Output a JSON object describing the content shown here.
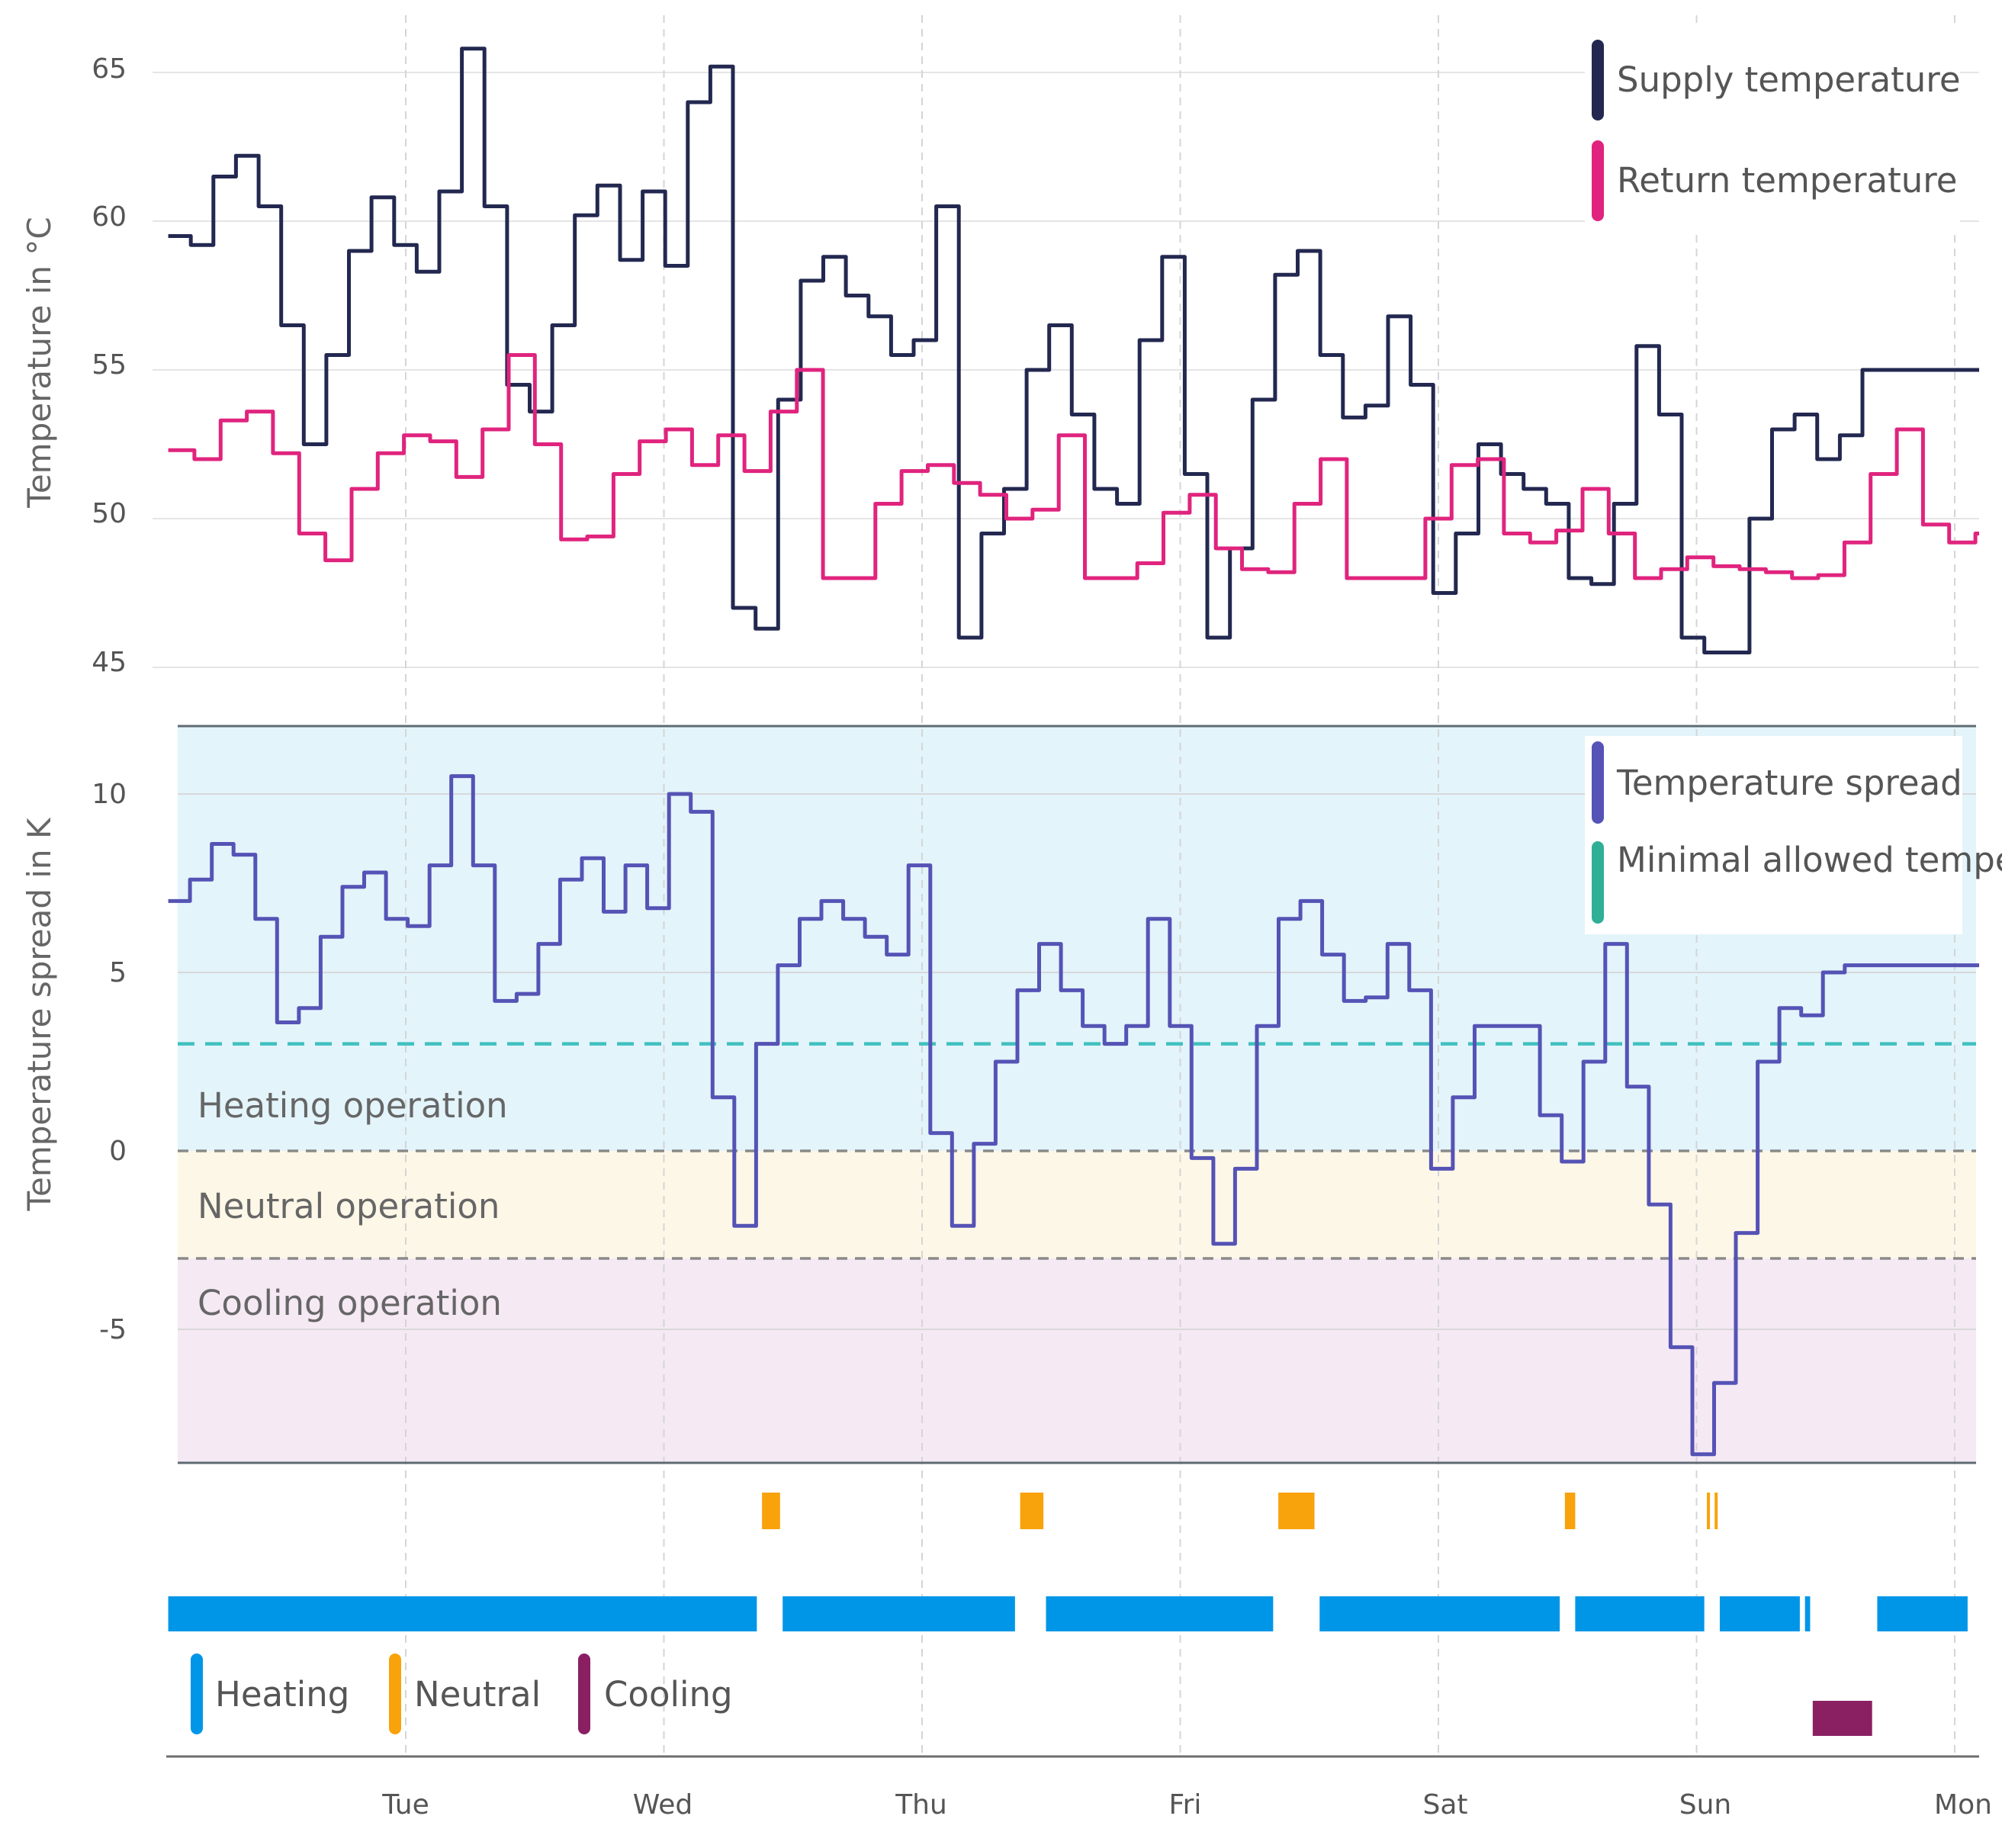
{
  "chart_data": {
    "type": "line",
    "x_categories": [
      "Tue",
      "Wed",
      "Thu",
      "Fri",
      "Sat",
      "Sun",
      "Mon"
    ],
    "top": {
      "ylabel": "Temperature in °C",
      "ylim": [
        45,
        66.5
      ],
      "y_ticks": [
        "45",
        "50",
        "55",
        "60",
        "65"
      ],
      "grid": true,
      "legend_position": "top-right",
      "series": [
        {
          "name": "Supply temperature",
          "color": "#232850",
          "x": [
            0,
            0.1,
            0.2,
            0.3,
            0.4,
            0.5,
            0.6,
            0.7,
            0.8,
            0.9,
            1,
            1.1,
            1.2,
            1.3,
            1.4,
            1.5,
            1.6,
            1.7,
            1.8,
            1.9,
            2,
            2.1,
            2.2,
            2.3,
            2.4,
            2.5,
            2.6,
            2.7,
            2.8,
            2.9,
            3,
            3.1,
            3.2,
            3.3,
            3.4,
            3.5,
            3.6,
            3.7,
            3.8,
            3.9,
            4,
            4.1,
            4.2,
            4.3,
            4.4,
            4.5,
            4.6,
            4.7,
            4.8,
            4.9,
            5,
            5.1,
            5.2,
            5.3,
            5.4,
            5.5,
            5.6,
            5.7,
            5.8,
            5.9,
            6,
            6.1,
            6.2,
            6.3,
            6.4,
            6.5,
            6.6,
            6.7,
            6.8,
            6.9,
            7,
            7.1,
            7.2,
            7.3,
            7.4,
            7.5,
            7.6,
            7.7,
            7.8,
            7.9,
            8
          ],
          "values": [
            59.5,
            59.2,
            61.5,
            62.2,
            60.5,
            56.5,
            52.5,
            55.5,
            59.0,
            60.8,
            59.2,
            58.3,
            61.0,
            65.8,
            60.5,
            54.5,
            53.6,
            56.5,
            60.2,
            61.2,
            58.7,
            61.0,
            58.5,
            64.0,
            65.2,
            47.0,
            46.3,
            54.0,
            58.0,
            58.8,
            57.5,
            56.8,
            55.5,
            56.0,
            60.5,
            46.0,
            49.5,
            51.0,
            55.0,
            56.5,
            53.5,
            51.0,
            50.5,
            56.0,
            58.8,
            51.5,
            46.0,
            49.0,
            54.0,
            58.2,
            59.0,
            55.5,
            53.4,
            53.8,
            56.8,
            54.5,
            47.5,
            49.5,
            52.5,
            51.5,
            51.0,
            50.5,
            48.0,
            47.8,
            50.5,
            55.8,
            53.5,
            46.0,
            45.5,
            45.5,
            50.0,
            53.0,
            53.5,
            52.0,
            52.8,
            55.0,
            55.0,
            55.0,
            55.0,
            55.0,
            55.0
          ],
          "last_x": 6.9
        },
        {
          "name": "Return temperature",
          "color": "#e0247e",
          "x": [
            0,
            0.1,
            0.2,
            0.3,
            0.4,
            0.5,
            0.6,
            0.7,
            0.8,
            0.9,
            1,
            1.1,
            1.2,
            1.3,
            1.4,
            1.5,
            1.6,
            1.7,
            1.8,
            1.9,
            2,
            2.1,
            2.2,
            2.3,
            2.4,
            2.5,
            2.6,
            2.7,
            2.8,
            2.9,
            3,
            3.1,
            3.2,
            3.3,
            3.4,
            3.5,
            3.6,
            3.7,
            3.8,
            3.9,
            4,
            4.1,
            4.2,
            4.3,
            4.4,
            4.5,
            4.6,
            4.7,
            4.8,
            4.9,
            5,
            5.1,
            5.2,
            5.3,
            5.4,
            5.5,
            5.6,
            5.7,
            5.8,
            5.9,
            6,
            6.1,
            6.2,
            6.3,
            6.4,
            6.5,
            6.6,
            6.7,
            6.8,
            6.9
          ],
          "values": [
            52.3,
            52.0,
            53.3,
            53.6,
            52.2,
            49.5,
            48.6,
            51.0,
            52.2,
            52.8,
            52.6,
            51.4,
            53.0,
            55.5,
            52.5,
            49.3,
            49.4,
            51.5,
            52.6,
            53.0,
            51.8,
            52.8,
            51.6,
            53.6,
            55.0,
            48.0,
            48.0,
            50.5,
            51.6,
            51.8,
            51.2,
            50.8,
            50.0,
            50.3,
            52.8,
            48.0,
            48.0,
            48.5,
            50.2,
            50.8,
            49.0,
            48.3,
            48.2,
            50.5,
            52.0,
            48.0,
            48.0,
            48.0,
            50.0,
            51.8,
            52.0,
            49.5,
            49.2,
            49.6,
            51.0,
            49.5,
            48.0,
            48.3,
            48.7,
            48.4,
            48.3,
            48.2,
            48.0,
            48.1,
            49.2,
            51.5,
            53.0,
            49.8,
            49.2,
            49.5
          ]
        }
      ]
    },
    "bottom": {
      "ylabel": "Temperature spread in K",
      "ylim": [
        -8.8,
        12
      ],
      "y_ticks": [
        "10",
        "5",
        "0",
        "-5"
      ],
      "grid": true,
      "legend_position": "top-right",
      "bands": [
        {
          "label": "Heating operation",
          "from": 0,
          "to": 12,
          "color": "#e3f4fb"
        },
        {
          "label": "Neutral operation",
          "from": -3,
          "to": 0,
          "color": "#fdf7e7"
        },
        {
          "label": "Cooling operation",
          "from": -8.8,
          "to": -3,
          "color": "#f5e9f4"
        }
      ],
      "band_boundaries": [
        0,
        -3
      ],
      "series": [
        {
          "name": "Temperature spread",
          "color": "#5553b5",
          "x": [
            0,
            0.1,
            0.2,
            0.3,
            0.4,
            0.5,
            0.6,
            0.7,
            0.8,
            0.9,
            1,
            1.1,
            1.2,
            1.3,
            1.4,
            1.5,
            1.6,
            1.7,
            1.8,
            1.9,
            2,
            2.1,
            2.2,
            2.3,
            2.4,
            2.5,
            2.55,
            2.6,
            2.7,
            2.8,
            2.9,
            3,
            3.1,
            3.2,
            3.3,
            3.4,
            3.5,
            3.55,
            3.6,
            3.7,
            3.8,
            3.9,
            4,
            4.1,
            4.2,
            4.3,
            4.4,
            4.5,
            4.55,
            4.6,
            4.7,
            4.8,
            4.9,
            5,
            5.1,
            5.2,
            5.3,
            5.4,
            5.5,
            5.6,
            5.7,
            5.8,
            5.9,
            6,
            6.1,
            6.2,
            6.3,
            6.4,
            6.5,
            6.6,
            6.7,
            6.8,
            6.9,
            7,
            7.1,
            7.2,
            7.3,
            7.4,
            7.5,
            7.6,
            7.7,
            7.8,
            7.9,
            8
          ],
          "values": [
            7.0,
            7.6,
            8.6,
            8.3,
            6.5,
            3.6,
            4.0,
            6.0,
            7.4,
            7.8,
            6.5,
            6.3,
            8.0,
            10.5,
            8.0,
            4.2,
            4.4,
            5.8,
            7.6,
            8.2,
            6.7,
            8.0,
            6.8,
            10.0,
            9.5,
            1.5,
            -2.1,
            3.0,
            5.2,
            6.5,
            7.0,
            6.5,
            6.0,
            5.5,
            8.0,
            0.5,
            -2.1,
            0.2,
            2.5,
            4.5,
            5.8,
            4.5,
            3.5,
            3.0,
            3.5,
            6.5,
            3.5,
            -0.2,
            -2.6,
            -0.5,
            3.5,
            6.5,
            7.0,
            5.5,
            4.2,
            4.3,
            5.8,
            4.5,
            -0.5,
            1.5,
            3.5,
            3.5,
            3.5,
            1.0,
            -0.3,
            2.5,
            5.8,
            1.8,
            -1.5,
            -5.5,
            -8.5,
            -6.5,
            -2.3,
            2.5,
            4.0,
            3.8,
            5.0,
            5.2,
            5.2,
            5.2,
            5.2,
            5.2,
            5.2,
            5.2
          ],
          "last_x": 6.9
        },
        {
          "name": "Minimal allowed temperature spread",
          "color": "#40c0c0",
          "style": "dashed",
          "value": 3
        }
      ]
    },
    "status_bars": {
      "legend": [
        {
          "label": "Heating",
          "color": "#0096e8"
        },
        {
          "label": "Neutral",
          "color": "#f8a20c"
        },
        {
          "label": "Cooling",
          "color": "#8a2062"
        }
      ],
      "heating_periods": [
        [
          -0.92,
          1.36
        ],
        [
          1.46,
          2.36
        ],
        [
          2.48,
          3.36
        ],
        [
          3.54,
          4.47
        ],
        [
          4.53,
          5.03
        ],
        [
          5.09,
          5.4
        ],
        [
          5.42,
          5.44
        ],
        [
          5.7,
          6.05
        ]
      ],
      "neutral_periods": [
        [
          1.38,
          1.45
        ],
        [
          2.38,
          2.47
        ],
        [
          3.38,
          3.52
        ],
        [
          4.49,
          4.53
        ],
        [
          5.04,
          5.05
        ],
        [
          5.07,
          5.08
        ]
      ],
      "cooling_periods": [
        [
          5.45,
          5.68
        ]
      ]
    }
  }
}
